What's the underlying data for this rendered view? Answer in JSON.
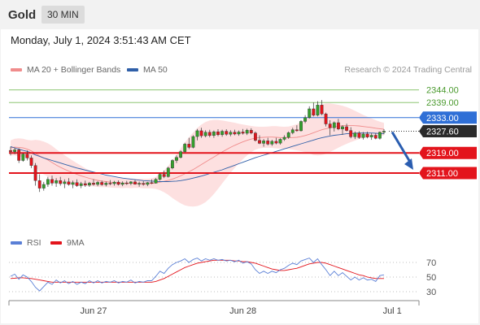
{
  "header": {
    "symbol": "Gold",
    "timeframe": "30 MIN"
  },
  "datetime": "Monday, July 1, 2024 3:51:43 AM CET",
  "legend": {
    "bb_label": "MA 20 + Bollinger Bands",
    "ma50_label": "MA 50"
  },
  "credit": "Research © 2024 Trading Central",
  "rsi_legend": {
    "rsi": "RSI",
    "ma9": "9MA"
  },
  "colors": {
    "up": "#33a02c",
    "down": "#e3141c",
    "band": "#fde0e0",
    "ma20": "#f08c8c",
    "ma50": "#2f5fa8",
    "resistance": "#7bbd5c",
    "pivot": "#2f6fd6",
    "support": "#e3141c",
    "rsi": "#5a7fd6",
    "rsi_ma": "#e3141c"
  },
  "levels": [
    {
      "value": 2344.0,
      "label": "2344.00",
      "kind": "resistance"
    },
    {
      "value": 2339.0,
      "label": "2339.00",
      "kind": "resistance"
    },
    {
      "value": 2333.0,
      "label": "2333.00",
      "kind": "pivot"
    },
    {
      "value": 2327.6,
      "label": "2327.60",
      "kind": "last"
    },
    {
      "value": 2319.0,
      "label": "2319.00",
      "kind": "support"
    },
    {
      "value": 2311.0,
      "label": "2311.00",
      "kind": "support"
    }
  ],
  "chart_data": [
    {
      "type": "candlestick",
      "x_ticks": [
        {
          "label": "Jun 27",
          "bar": 20
        },
        {
          "label": "Jun 28",
          "bar": 56
        },
        {
          "label": "Jul 1",
          "bar": 92
        }
      ],
      "ylim": [
        2300,
        2350
      ],
      "bars": [
        [
          2320,
          2321.5,
          2318,
          2319.5
        ],
        [
          2319.5,
          2321,
          2318.5,
          2320.2
        ],
        [
          2320.2,
          2320.8,
          2315,
          2316
        ],
        [
          2316,
          2319,
          2315.5,
          2318.5
        ],
        [
          2318.5,
          2320,
          2316,
          2317
        ],
        [
          2317,
          2318,
          2313,
          2314
        ],
        [
          2314,
          2315,
          2306,
          2308
        ],
        [
          2308,
          2310.5,
          2303.5,
          2305
        ],
        [
          2305,
          2307.5,
          2304,
          2306.5
        ],
        [
          2306.5,
          2309.5,
          2305.5,
          2308.5
        ],
        [
          2308.5,
          2310,
          2306,
          2307
        ],
        [
          2307,
          2309,
          2305.5,
          2308
        ],
        [
          2308,
          2309.5,
          2306,
          2306.8
        ],
        [
          2306.8,
          2308.5,
          2305,
          2307.5
        ],
        [
          2307.5,
          2309,
          2306,
          2306.5
        ],
        [
          2306.5,
          2308,
          2305,
          2307.2
        ],
        [
          2307.2,
          2308.5,
          2305.5,
          2306
        ],
        [
          2306,
          2307.5,
          2305,
          2306.8
        ],
        [
          2306.8,
          2308,
          2305.5,
          2306.2
        ],
        [
          2306.2,
          2307.5,
          2305.5,
          2307
        ],
        [
          2307,
          2308.5,
          2306,
          2306.5
        ],
        [
          2306.5,
          2307.8,
          2305.8,
          2307.3
        ],
        [
          2307.3,
          2308,
          2306,
          2306.4
        ],
        [
          2306.4,
          2307.6,
          2305.7,
          2307
        ],
        [
          2307,
          2308.2,
          2306.2,
          2306.8
        ],
        [
          2306.8,
          2307.9,
          2306,
          2307.4
        ],
        [
          2307.4,
          2308.1,
          2306.1,
          2306.5
        ],
        [
          2306.5,
          2307.7,
          2305.8,
          2307.1
        ],
        [
          2307.1,
          2307.9,
          2306.3,
          2306.9
        ],
        [
          2306.9,
          2307.8,
          2306.2,
          2307.5
        ],
        [
          2307.5,
          2308.2,
          2306.4,
          2306.6
        ],
        [
          2306.6,
          2307.6,
          2305.6,
          2306.9
        ],
        [
          2306.9,
          2307.8,
          2306,
          2306.5
        ],
        [
          2306.5,
          2307.5,
          2305.8,
          2307.2
        ],
        [
          2307.2,
          2308.5,
          2306.6,
          2307
        ],
        [
          2307,
          2309,
          2306.8,
          2308.5
        ],
        [
          2308.5,
          2311,
          2308,
          2310.5
        ],
        [
          2310.5,
          2312,
          2309,
          2309.6
        ],
        [
          2309.6,
          2313.5,
          2309.2,
          2313
        ],
        [
          2313,
          2316.5,
          2312.5,
          2316
        ],
        [
          2316,
          2318,
          2315,
          2317.2
        ],
        [
          2317.2,
          2320,
          2316.8,
          2319.5
        ],
        [
          2319.5,
          2323,
          2319,
          2322.5
        ],
        [
          2322.5,
          2325,
          2320.5,
          2321.2
        ],
        [
          2321.2,
          2326,
          2320.8,
          2325.5
        ],
        [
          2325.5,
          2328.5,
          2324,
          2327.8
        ],
        [
          2327.8,
          2329,
          2325,
          2325.8
        ],
        [
          2325.8,
          2328,
          2325.2,
          2327.2
        ],
        [
          2327.2,
          2328.2,
          2325.2,
          2325.9
        ],
        [
          2325.9,
          2327.9,
          2325,
          2327.4
        ],
        [
          2327.4,
          2328.4,
          2325.6,
          2326.2
        ],
        [
          2326.2,
          2328.2,
          2325.4,
          2327.6
        ],
        [
          2327.6,
          2328.4,
          2325.8,
          2326.4
        ],
        [
          2326.4,
          2328,
          2325.6,
          2327.2
        ],
        [
          2327.2,
          2328.2,
          2326,
          2326.5
        ],
        [
          2326.5,
          2327.9,
          2325.8,
          2327.3
        ],
        [
          2327.3,
          2328.5,
          2326.3,
          2326.8
        ],
        [
          2326.8,
          2328.6,
          2326.1,
          2328
        ],
        [
          2328,
          2328.8,
          2326.4,
          2326.9
        ],
        [
          2326.9,
          2327.5,
          2323.5,
          2324
        ],
        [
          2324,
          2326,
          2322.5,
          2322.8
        ],
        [
          2322.8,
          2324.5,
          2321.5,
          2323.8
        ],
        [
          2323.8,
          2325,
          2322,
          2322.5
        ],
        [
          2322.5,
          2324.2,
          2321.8,
          2323.6
        ],
        [
          2323.6,
          2325,
          2322.4,
          2322.9
        ],
        [
          2322.9,
          2324.8,
          2322.3,
          2324.4
        ],
        [
          2324.4,
          2326,
          2323.8,
          2325.2
        ],
        [
          2325.2,
          2327.5,
          2324.6,
          2327
        ],
        [
          2327,
          2329,
          2326.4,
          2328.2
        ],
        [
          2328.2,
          2330,
          2327.4,
          2327.8
        ],
        [
          2327.8,
          2332,
          2327.5,
          2331.5
        ],
        [
          2331.5,
          2334,
          2330.8,
          2333
        ],
        [
          2333,
          2337.5,
          2332.6,
          2336.5
        ],
        [
          2336.5,
          2339,
          2333.5,
          2334
        ],
        [
          2334,
          2339.5,
          2333.5,
          2338
        ],
        [
          2338,
          2340,
          2334,
          2334.5
        ],
        [
          2334.5,
          2335,
          2329.5,
          2330.5
        ],
        [
          2330.5,
          2332,
          2326,
          2329
        ],
        [
          2329,
          2331.5,
          2327.5,
          2331
        ],
        [
          2331,
          2332.5,
          2328,
          2328.5
        ],
        [
          2328.5,
          2330,
          2326.2,
          2329.4
        ],
        [
          2329.4,
          2330.6,
          2327.5,
          2327.9
        ],
        [
          2327.9,
          2329.2,
          2324.8,
          2325.4
        ],
        [
          2325.4,
          2327.5,
          2324.5,
          2326.9
        ],
        [
          2326.9,
          2327.6,
          2324.6,
          2325.1
        ],
        [
          2325.1,
          2327.3,
          2324.3,
          2326.5
        ],
        [
          2326.5,
          2327.4,
          2324.8,
          2325.3
        ],
        [
          2325.3,
          2326.8,
          2324.2,
          2326
        ],
        [
          2326,
          2326.8,
          2324.4,
          2324.8
        ],
        [
          2324.8,
          2327.5,
          2324.3,
          2327.2
        ],
        [
          2327.2,
          2328.4,
          2326.4,
          2327.6
        ]
      ],
      "ma20": [
        2321,
        2321.3,
        2321.2,
        2321,
        2320.5,
        2319.8,
        2318.8,
        2317.8,
        2317,
        2316.2,
        2315.2,
        2314.2,
        2313.3,
        2312.5,
        2311.8,
        2311.1,
        2310.5,
        2309.9,
        2309.4,
        2308.9,
        2308.5,
        2308.1,
        2307.8,
        2307.6,
        2307.4,
        2307.2,
        2307.1,
        2307,
        2307,
        2306.9,
        2306.9,
        2306.9,
        2306.8,
        2306.8,
        2306.9,
        2307.1,
        2307.4,
        2307.7,
        2308.1,
        2308.6,
        2309.2,
        2309.9,
        2310.7,
        2311.5,
        2312.4,
        2313.4,
        2314.4,
        2315.4,
        2316.4,
        2317.4,
        2318.4,
        2319.4,
        2320.3,
        2321.2,
        2322,
        2322.7,
        2323.4,
        2324,
        2324.5,
        2324.9,
        2325.1,
        2325.2,
        2325.3,
        2325.3,
        2325.2,
        2325.1,
        2325,
        2325,
        2325.1,
        2325.2,
        2325.5,
        2325.9,
        2326.4,
        2327,
        2327.6,
        2328.2,
        2328.6,
        2329,
        2329.3,
        2329.6,
        2329.8,
        2329.9,
        2329.9,
        2329.8,
        2329.7,
        2329.5,
        2329.3,
        2329.1,
        2328.8,
        2328.6,
        2328.4
      ],
      "bb_upper": [
        2324,
        2324.6,
        2324.8,
        2324.6,
        2324.2,
        2324,
        2324.2,
        2324,
        2323.5,
        2322.8,
        2321.8,
        2320.5,
        2319.3,
        2318.1,
        2317,
        2315.9,
        2314.9,
        2313.9,
        2312.9,
        2312,
        2311.3,
        2310.7,
        2310.2,
        2309.8,
        2309.5,
        2309.3,
        2309.1,
        2309,
        2308.9,
        2308.8,
        2308.7,
        2308.7,
        2308.7,
        2308.7,
        2308.9,
        2309.5,
        2310.6,
        2312,
        2313.8,
        2316.1,
        2318.4,
        2320.8,
        2323.2,
        2325.2,
        2327.1,
        2328.9,
        2330.3,
        2331.3,
        2331.9,
        2332.1,
        2332.1,
        2331.9,
        2331.6,
        2331.3,
        2331,
        2330.6,
        2330.3,
        2330,
        2329.7,
        2329.5,
        2329.4,
        2329.4,
        2329.5,
        2329.6,
        2329.6,
        2329.5,
        2329.4,
        2329.5,
        2329.9,
        2330.4,
        2331.3,
        2332.5,
        2334,
        2335.8,
        2337.2,
        2338.2,
        2338.6,
        2338.6,
        2338.4,
        2338.1,
        2337.7,
        2337.2,
        2336.5,
        2335.7,
        2334.9,
        2334.1,
        2333.4,
        2332.7,
        2332,
        2331.4,
        2330.9
      ],
      "bb_lower": [
        2318,
        2318,
        2317.6,
        2317.4,
        2316.8,
        2315.6,
        2313.4,
        2311.6,
        2310.5,
        2309.6,
        2308.6,
        2307.9,
        2307.3,
        2306.9,
        2306.6,
        2306.3,
        2306.1,
        2305.9,
        2305.9,
        2305.8,
        2305.7,
        2305.5,
        2305.4,
        2305.4,
        2305.3,
        2305.1,
        2305.1,
        2305,
        2305.1,
        2305,
        2305.1,
        2305.1,
        2304.9,
        2304.9,
        2304.9,
        2304.7,
        2304.2,
        2303.4,
        2302.4,
        2301.1,
        2300,
        2299,
        2298.2,
        2297.8,
        2297.7,
        2297.9,
        2298.5,
        2299.5,
        2300.9,
        2302.7,
        2304.7,
        2306.9,
        2309,
        2311.1,
        2313,
        2314.8,
        2316.5,
        2318,
        2319.3,
        2320.3,
        2320.8,
        2321,
        2321.1,
        2321,
        2320.8,
        2320.7,
        2320.6,
        2320.5,
        2320.3,
        2320,
        2319.7,
        2319.3,
        2318.8,
        2318.2,
        2318,
        2318.2,
        2318.6,
        2319.4,
        2320.2,
        2321.1,
        2321.9,
        2322.6,
        2323.3,
        2323.9,
        2324.5,
        2324.9,
        2325.2,
        2325.5,
        2325.6,
        2325.8,
        2325.9
      ],
      "ma50": [
        2321.5,
        2321,
        2320.5,
        2320,
        2319.6,
        2319,
        2318.2,
        2317.6,
        2317,
        2316.5,
        2316,
        2315.5,
        2315,
        2314.5,
        2314,
        2313.5,
        2313,
        2312.6,
        2312.2,
        2311.8,
        2311.4,
        2311,
        2310.6,
        2310.2,
        2309.9,
        2309.6,
        2309.3,
        2309,
        2308.8,
        2308.6,
        2308.4,
        2308.2,
        2308,
        2307.9,
        2307.8,
        2307.7,
        2307.6,
        2307.6,
        2307.6,
        2307.7,
        2307.8,
        2308,
        2308.3,
        2308.6,
        2309,
        2309.4,
        2309.8,
        2310.3,
        2310.8,
        2311.3,
        2311.8,
        2312.3,
        2312.9,
        2313.5,
        2314.1,
        2314.7,
        2315.3,
        2315.9,
        2316.5,
        2317.1,
        2317.6,
        2318.1,
        2318.6,
        2319.1,
        2319.6,
        2320.1,
        2320.6,
        2321.1,
        2321.6,
        2322.1,
        2322.6,
        2323.1,
        2323.6,
        2324.1,
        2324.6,
        2325,
        2325.4,
        2325.7,
        2326,
        2326.2,
        2326.4,
        2326.6,
        2326.7,
        2326.8,
        2326.9,
        2326.9,
        2326.9,
        2326.9,
        2326.8,
        2326.7,
        2326.6
      ],
      "rsi_ylim": [
        20,
        80
      ],
      "rsi_ticks": [
        30,
        50,
        70
      ],
      "rsi": [
        51,
        54,
        47,
        53,
        50,
        44,
        36,
        31,
        37,
        43,
        40,
        46,
        42,
        45,
        41,
        44,
        40,
        43,
        41,
        45,
        42,
        45,
        42,
        44,
        43,
        45,
        42,
        44,
        43,
        46,
        42,
        44,
        43,
        45,
        45,
        51,
        58,
        55,
        62,
        67,
        70,
        72,
        75,
        70,
        74,
        76,
        72,
        75,
        73,
        75,
        73,
        74,
        72,
        73,
        71,
        73,
        69,
        71,
        68,
        60,
        55,
        58,
        55,
        58,
        56,
        60,
        62,
        66,
        69,
        67,
        72,
        74,
        76,
        70,
        75,
        67,
        60,
        52,
        58,
        52,
        56,
        51,
        46,
        50,
        46,
        49,
        46,
        47,
        44,
        52,
        53
      ],
      "rsi_ma": [
        48,
        48.5,
        49,
        49,
        48.5,
        48,
        47,
        46,
        45,
        44,
        43,
        43,
        43,
        43,
        43,
        43,
        43,
        43,
        43,
        43,
        43,
        43,
        43,
        43,
        43,
        43,
        43,
        43,
        43,
        43,
        43,
        43,
        43,
        43,
        43,
        44,
        46,
        48,
        51,
        54,
        57,
        60,
        63,
        65,
        67,
        69,
        70,
        71,
        72,
        73,
        73,
        73,
        73,
        73,
        72,
        72,
        71,
        71,
        70,
        69,
        67,
        65,
        63,
        61,
        60,
        59,
        59,
        60,
        61,
        62,
        64,
        66,
        68,
        69,
        70,
        70,
        69,
        67,
        65,
        63,
        61,
        59,
        57,
        55,
        53,
        52,
        50,
        49,
        48,
        48,
        48
      ],
      "forecast_arrow": {
        "from": 2327.6,
        "to": 2311.0
      }
    }
  ]
}
